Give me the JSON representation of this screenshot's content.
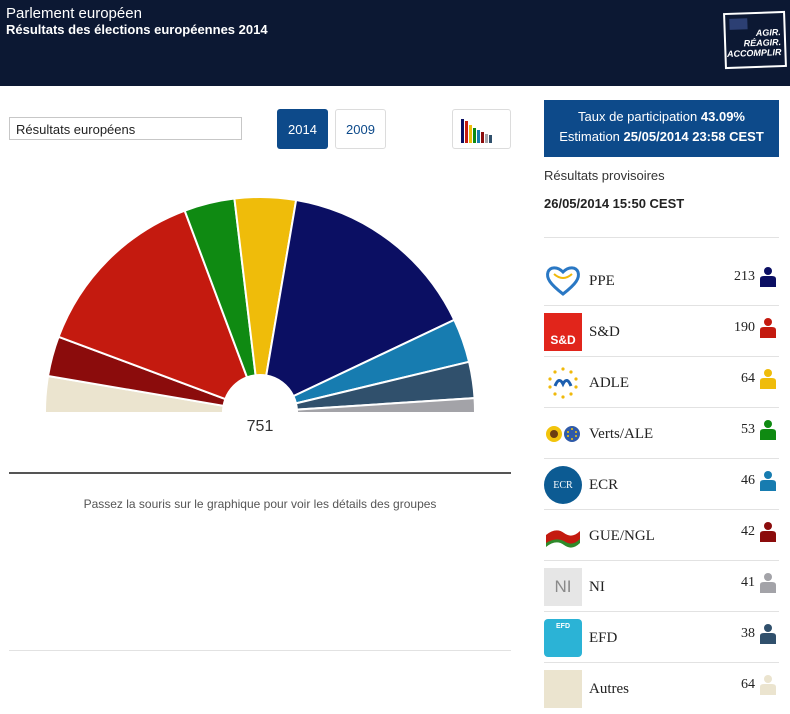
{
  "header": {
    "org": "Parlement européen",
    "title": "Résultats des élections européennes 2014",
    "slogan": [
      "AGIR.",
      "RÉAGIR.",
      "ACCOMPLIR"
    ]
  },
  "controls": {
    "select_value": "Résultats européens",
    "years": [
      "2014",
      "2009"
    ],
    "selected_year": "2014",
    "chart_toggle_icon": "bar-chart-icon"
  },
  "chart_data": {
    "type": "pie",
    "total_seats": "751",
    "groups": [
      {
        "name": "Autres",
        "seats": 64,
        "color": "#ebe4cf"
      },
      {
        "name": "GUE/NGL",
        "seats": 42,
        "color": "#8b0c0c"
      },
      {
        "name": "S&D",
        "seats": 190,
        "color": "#c41a0f"
      },
      {
        "name": "Verts/ALE",
        "seats": 53,
        "color": "#0f8a12"
      },
      {
        "name": "ADLE",
        "seats": 64,
        "color": "#efbc0a"
      },
      {
        "name": "PPE",
        "seats": 213,
        "color": "#0b0f63"
      },
      {
        "name": "ECR",
        "seats": 46,
        "color": "#177cb0"
      },
      {
        "name": "EFD",
        "seats": 38,
        "color": "#30506c"
      },
      {
        "name": "NI",
        "seats": 41,
        "color": "#a3a3a8"
      }
    ]
  },
  "hint": "Passez la souris sur le graphique pour voir les détails des groupes",
  "turnout": {
    "label": "Taux de participation",
    "value": "43.09%",
    "estimate_label": "Estimation",
    "estimate_value": "25/05/2014 23:58 CEST"
  },
  "provisional": {
    "label": "Résultats provisoires",
    "date": "26/05/2014 15:50 CEST"
  },
  "parties": [
    {
      "name": "PPE",
      "seats": "213",
      "color": "#0b0f63",
      "logo_icon": "ppe-heart-logo-icon"
    },
    {
      "name": "S&D",
      "seats": "190",
      "color": "#c41a0f",
      "logo_icon": "sd-logo-icon",
      "logo_text": "S&D"
    },
    {
      "name": "ADLE",
      "seats": "64",
      "color": "#efbc0a",
      "logo_icon": "adle-stars-logo-icon"
    },
    {
      "name": "Verts/ALE",
      "seats": "53",
      "color": "#0f8a12",
      "logo_icon": "verts-ale-logo-icon"
    },
    {
      "name": "ECR",
      "seats": "46",
      "color": "#177cb0",
      "logo_icon": "ecr-logo-icon",
      "logo_text": "ECR"
    },
    {
      "name": "GUE/NGL",
      "seats": "42",
      "color": "#8b0c0c",
      "logo_icon": "gue-ngl-flag-logo-icon"
    },
    {
      "name": "NI",
      "seats": "41",
      "color": "#a3a3a8",
      "logo_icon": "ni-logo-icon",
      "logo_text": "NI"
    },
    {
      "name": "EFD",
      "seats": "38",
      "color": "#30506c",
      "logo_icon": "efd-logo-icon",
      "logo_text": "EFD"
    },
    {
      "name": "Autres",
      "seats": "64",
      "color": "#e6dfc7",
      "logo_icon": "autres-logo-icon"
    }
  ]
}
